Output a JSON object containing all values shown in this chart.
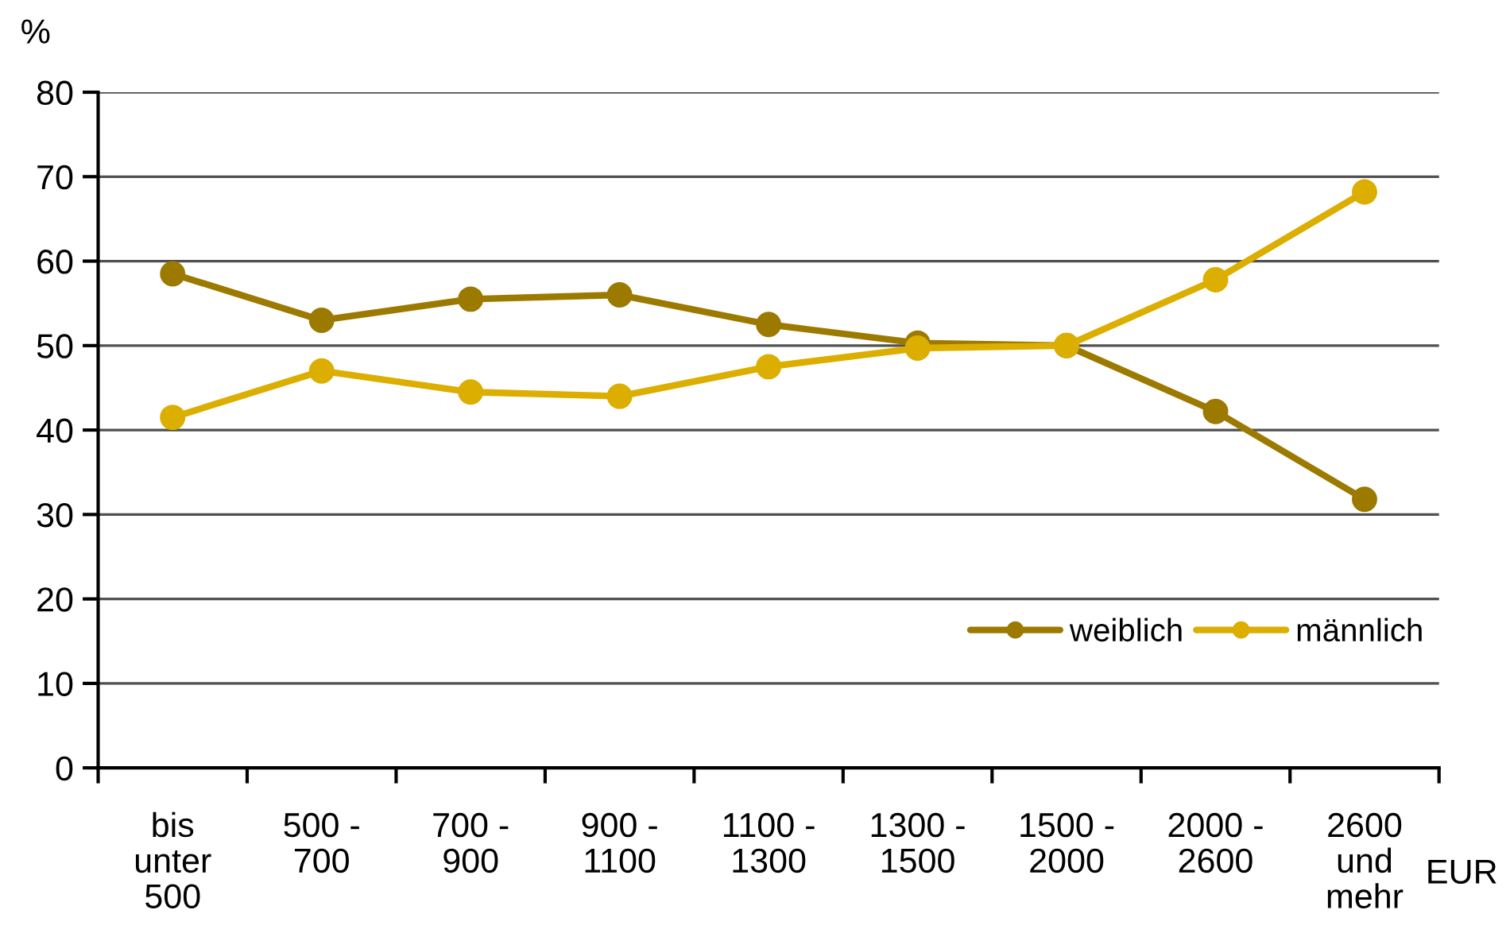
{
  "chart_data": {
    "type": "line",
    "categories": [
      "bis\nunter\n500",
      "500 -\n700",
      "700 -\n900",
      "900 -\n1100",
      "1100 -\n1300",
      "1300 -\n1500",
      "1500 -\n2000",
      "2000 -\n2600",
      "2600\nund\nmehr"
    ],
    "series": [
      {
        "name": "weiblich",
        "color": "#9c7a00",
        "values": [
          58.5,
          53,
          55.5,
          56,
          52.5,
          50.3,
          50,
          42.2,
          31.8
        ]
      },
      {
        "name": "männlich",
        "color": "#dcae00",
        "values": [
          41.5,
          47,
          44.5,
          44,
          47.5,
          49.7,
          50,
          57.8,
          68.2
        ]
      }
    ],
    "ylabel": "%",
    "xlabel": "EUR",
    "ylim": [
      0,
      80
    ],
    "yticks": [
      0,
      10,
      20,
      30,
      40,
      50,
      60,
      70,
      80
    ],
    "grid": "y",
    "legend": "bottom right",
    "marker": "circle",
    "line_style": "solid"
  }
}
